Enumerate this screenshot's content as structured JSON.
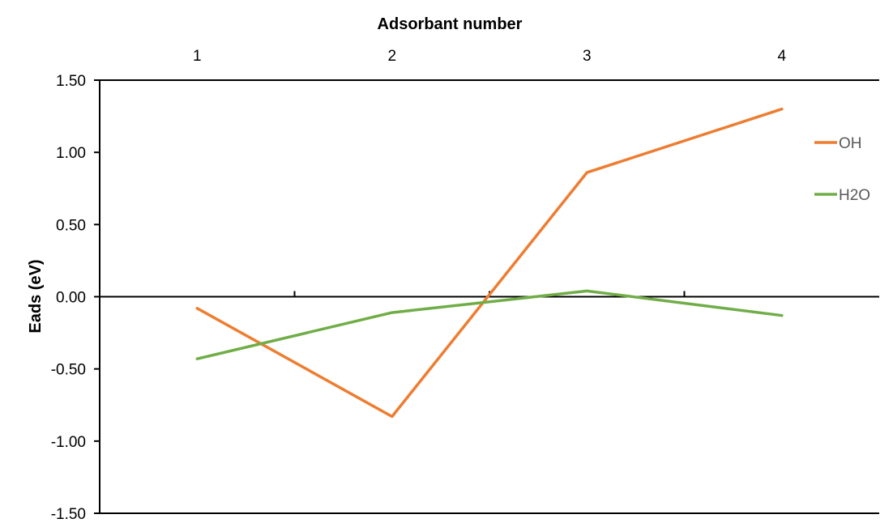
{
  "chart_data": {
    "type": "line",
    "title": "",
    "xlabel": "Adsorbant number",
    "ylabel": "Eads (eV)",
    "categories": [
      "1",
      "2",
      "3",
      "4"
    ],
    "ylim": [
      -1.5,
      1.5
    ],
    "y_ticks": [
      1.5,
      1.0,
      0.5,
      0.0,
      -0.5,
      -1.0,
      -1.5
    ],
    "y_tick_labels": [
      "1.50",
      "1.00",
      "0.50",
      "0.00",
      "-0.50",
      "-1.00",
      "-1.50"
    ],
    "x_axis_position": "top",
    "grid": false,
    "legend_position": "right",
    "series": [
      {
        "name": "OH",
        "color": "#ED7D31",
        "values": [
          -0.08,
          -0.83,
          0.86,
          1.3
        ]
      },
      {
        "name": "H2O",
        "color": "#70AD47",
        "values": [
          -0.43,
          -0.11,
          0.04,
          -0.13
        ]
      }
    ]
  }
}
